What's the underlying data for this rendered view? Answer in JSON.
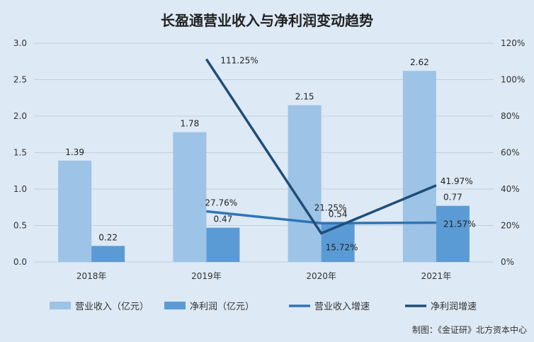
{
  "chart_data": {
    "type": "bar",
    "title": "长盈通营业收入与净利润变动趋势",
    "categories": [
      "2018年",
      "2019年",
      "2020年",
      "2021年"
    ],
    "y_left": {
      "ticks": [
        "0.0",
        "0.5",
        "1.0",
        "1.5",
        "2.0",
        "2.5",
        "3.0"
      ],
      "min": 0,
      "max": 3.0
    },
    "y_right": {
      "ticks": [
        "0%",
        "20%",
        "40%",
        "60%",
        "80%",
        "100%",
        "120%"
      ],
      "min": 0,
      "max": 120
    },
    "series": [
      {
        "name": "营业收入（亿元）",
        "kind": "bar",
        "axis": "left",
        "color": "#9dc3e6",
        "values": [
          1.39,
          1.78,
          2.15,
          2.62
        ],
        "labels": [
          "1.39",
          "1.78",
          "2.15",
          "2.62"
        ]
      },
      {
        "name": "净利润（亿元）",
        "kind": "bar",
        "axis": "left",
        "color": "#5b9bd5",
        "values": [
          0.22,
          0.47,
          0.54,
          0.77
        ],
        "labels": [
          "0.22",
          "0.47",
          "0.54",
          "0.77"
        ]
      },
      {
        "name": "营业收入增速",
        "kind": "line",
        "axis": "right",
        "color": "#2e75b6",
        "values": [
          null,
          27.76,
          21.25,
          21.57
        ],
        "labels": [
          "",
          "27.76%",
          "21.25%",
          "21.57%"
        ]
      },
      {
        "name": "净利润增速",
        "kind": "line",
        "axis": "right",
        "color": "#1f4e79",
        "values": [
          null,
          111.25,
          15.72,
          41.97
        ],
        "labels": [
          "",
          "111.25%",
          "15.72%",
          "41.97%"
        ]
      }
    ],
    "grid": true,
    "legend_position": "bottom"
  },
  "source_note": "制图：《金证研》北方资本中心"
}
